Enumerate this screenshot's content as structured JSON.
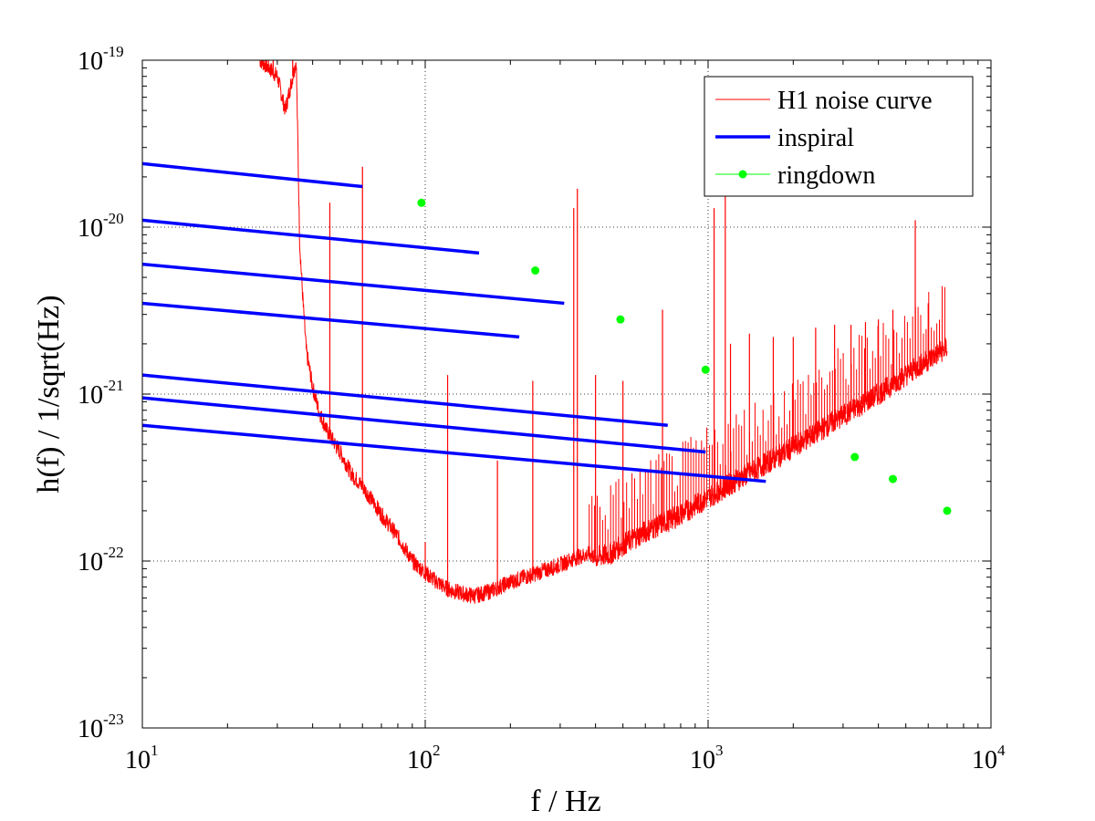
{
  "chart_data": {
    "type": "line",
    "scale": "log-log",
    "xlabel": "f / Hz",
    "ylabel": "h(f) / 1/sqrt(Hz)",
    "xlim": [
      10,
      10000
    ],
    "ylim": [
      1e-23,
      1e-19
    ],
    "grid": true,
    "legend_position": "top-right",
    "x_ticks": [
      {
        "base": "10",
        "exp": "1",
        "value": 10
      },
      {
        "base": "10",
        "exp": "2",
        "value": 100
      },
      {
        "base": "10",
        "exp": "3",
        "value": 1000
      },
      {
        "base": "10",
        "exp": "4",
        "value": 10000
      }
    ],
    "y_ticks": [
      {
        "base": "10",
        "exp": "-23",
        "value": 1e-23
      },
      {
        "base": "10",
        "exp": "-22",
        "value": 1e-22
      },
      {
        "base": "10",
        "exp": "-21",
        "value": 1e-21
      },
      {
        "base": "10",
        "exp": "-20",
        "value": 1e-20
      },
      {
        "base": "10",
        "exp": "-19",
        "value": 1e-19
      }
    ],
    "series": [
      {
        "name": "H1 noise curve",
        "style": "thin-line",
        "color": "#ff0000",
        "x": [
          26,
          28,
          30,
          32,
          34,
          35,
          36,
          37,
          38,
          40,
          42,
          45,
          50,
          55,
          60,
          65,
          70,
          80,
          90,
          100,
          110,
          120,
          130,
          140,
          150,
          170,
          200,
          250,
          300,
          340,
          380,
          400,
          450,
          500,
          600,
          700,
          800,
          1000,
          1200,
          1500,
          2000,
          3000,
          4000,
          5000,
          6000,
          7000
        ],
        "y": [
          1e-19,
          9e-20,
          8e-20,
          5e-20,
          8e-20,
          1e-19,
          8e-21,
          3.5e-21,
          1.8e-21,
          1.1e-21,
          8e-22,
          6e-22,
          4.5e-22,
          3.3e-22,
          2.8e-22,
          2.3e-22,
          1.9e-22,
          1.4e-22,
          1e-22,
          8.5e-23,
          7.5e-23,
          6.8e-23,
          6.5e-23,
          6.3e-23,
          6.2e-23,
          6.6e-23,
          7.5e-23,
          8.5e-23,
          9.5e-23,
          1.05e-22,
          1.1e-22,
          1.05e-22,
          1.1e-22,
          1.25e-22,
          1.5e-22,
          1.7e-22,
          1.9e-22,
          2.4e-22,
          2.9e-22,
          3.6e-22,
          4.8e-22,
          7.4e-22,
          1e-21,
          1.3e-21,
          1.6e-21,
          1.9e-21
        ],
        "spikes": [
          {
            "f": 29,
            "h": 1e-19
          },
          {
            "f": 34,
            "h": 1e-19
          },
          {
            "f": 46,
            "h": 1.4e-20
          },
          {
            "f": 60,
            "h": 2.3e-20
          },
          {
            "f": 100,
            "h": 1.3e-22
          },
          {
            "f": 120,
            "h": 1.3e-21
          },
          {
            "f": 180,
            "h": 4e-22
          },
          {
            "f": 240,
            "h": 1.2e-21
          },
          {
            "f": 335,
            "h": 1.3e-20
          },
          {
            "f": 345,
            "h": 1.7e-20
          },
          {
            "f": 400,
            "h": 1.3e-21
          },
          {
            "f": 500,
            "h": 1.2e-21
          },
          {
            "f": 690,
            "h": 3.2e-21
          },
          {
            "f": 1050,
            "h": 1.3e-20
          },
          {
            "f": 1150,
            "h": 1.6e-20
          },
          {
            "f": 1200,
            "h": 2e-21
          },
          {
            "f": 1400,
            "h": 2.3e-21
          },
          {
            "f": 1700,
            "h": 2.2e-21
          },
          {
            "f": 2000,
            "h": 2.2e-21
          },
          {
            "f": 2400,
            "h": 2.5e-21
          },
          {
            "f": 2800,
            "h": 2.6e-21
          },
          {
            "f": 3200,
            "h": 2.6e-21
          },
          {
            "f": 3600,
            "h": 2.7e-21
          },
          {
            "f": 4000,
            "h": 2.8e-21
          },
          {
            "f": 4500,
            "h": 3.2e-21
          },
          {
            "f": 5400,
            "h": 1.1e-20
          },
          {
            "f": 6000,
            "h": 3.5e-21
          }
        ]
      },
      {
        "name": "inspiral",
        "style": "thick-line",
        "color": "#0000ff",
        "segments": [
          {
            "x": [
              10,
              60
            ],
            "y": [
              2.4e-20,
              1.75e-20
            ]
          },
          {
            "x": [
              10,
              155
            ],
            "y": [
              1.1e-20,
              7e-21
            ]
          },
          {
            "x": [
              10,
              310
            ],
            "y": [
              6e-21,
              3.5e-21
            ]
          },
          {
            "x": [
              10,
              215
            ],
            "y": [
              3.5e-21,
              2.2e-21
            ]
          },
          {
            "x": [
              10,
              720
            ],
            "y": [
              1.3e-21,
              6.5e-22
            ]
          },
          {
            "x": [
              10,
              980
            ],
            "y": [
              9.5e-22,
              4.5e-22
            ]
          },
          {
            "x": [
              10,
              1600
            ],
            "y": [
              6.5e-22,
              3e-22
            ]
          }
        ]
      },
      {
        "name": "ringdown",
        "style": "markers",
        "color": "#00ff00",
        "x": [
          97,
          245,
          490,
          980,
          3300,
          4500,
          7000
        ],
        "y": [
          1.4e-20,
          5.5e-21,
          2.8e-21,
          1.4e-21,
          4.2e-22,
          3.1e-22,
          2e-22
        ]
      }
    ]
  }
}
